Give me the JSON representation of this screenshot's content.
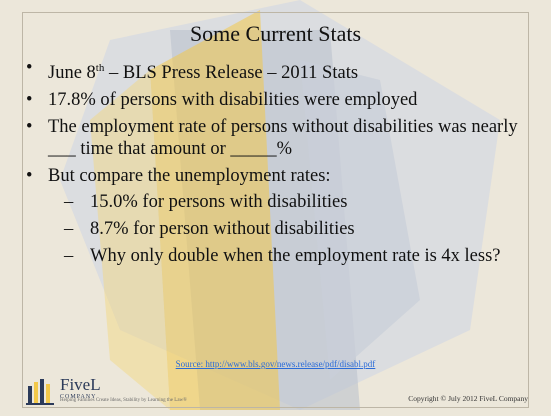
{
  "slide": {
    "title": "Some Current Stats",
    "bullets": [
      {
        "pre": "June 8",
        "sup": "th",
        "post": " – BLS Press Release – 2011 Stats"
      },
      {
        "text": "17.8% of persons with disabilities were employed"
      },
      {
        "text": "The employment rate of persons without disabilities was nearly ___ time that amount or _____%"
      },
      {
        "text": "But compare the unemployment rates:"
      }
    ],
    "sub_bullets": [
      "15.0% for persons with disabilities",
      "8.7% for person without disabilities",
      "Why only double when the employment rate is 4x less?"
    ],
    "source": "Source: http://www.bls.gov/news.release/pdf/disabl.pdf",
    "footer": {
      "logo_name": "FiveL",
      "logo_sub": "COMPANY",
      "logo_tagline": "Helping Families Create Ideas, Stability by Learning the Law®",
      "copyright": "Copyright © July 2012 FiveL Company"
    }
  },
  "colors": {
    "background": "#ece7da",
    "accent_yellow": "#f2c84a",
    "accent_blue_grey": "#b8c0cc",
    "link": "#2a6bd8"
  }
}
